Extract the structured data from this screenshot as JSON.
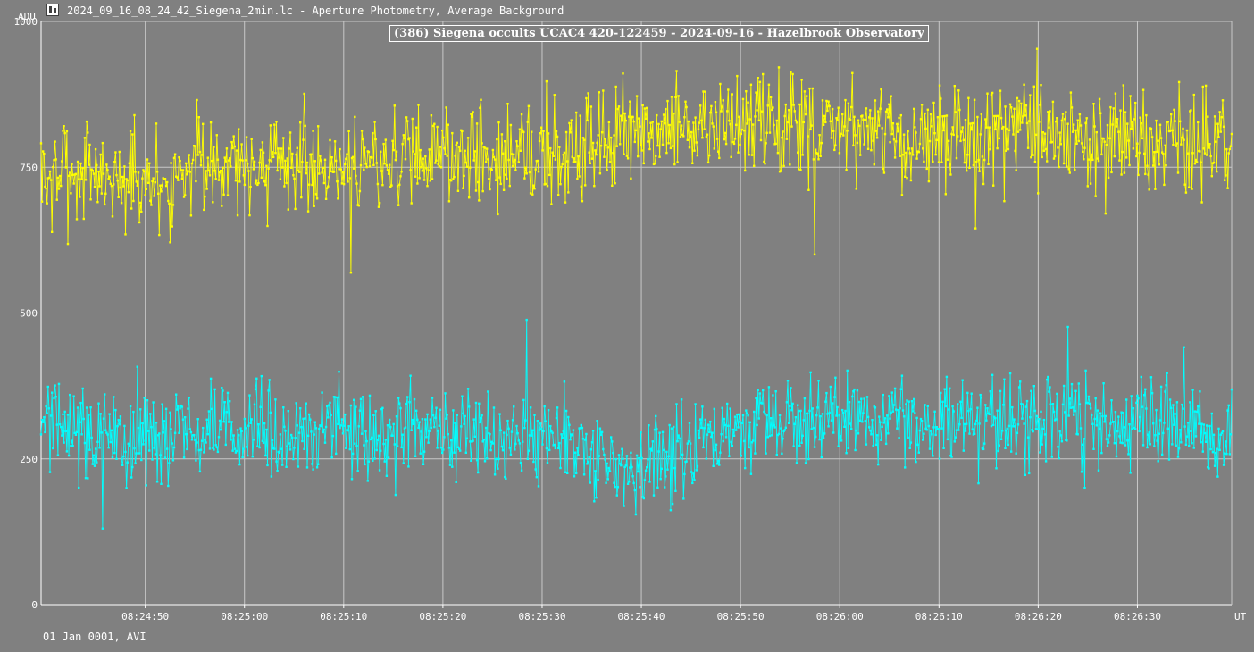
{
  "window": {
    "title": "2024_09_16_08_24_42_Siegena_2min.lc - Aperture Photometry, Average Background",
    "icon": "tangra-app-icon"
  },
  "footer": {
    "date_label": "01 Jan 0001, AVI"
  },
  "chart_data": {
    "type": "line",
    "title": "(386) Siegena occults UCAC4 420-122459 - 2024-09-16 - Hazelbrook Observatory",
    "ylabel": "ADU",
    "xlabel": "UT",
    "ylim": [
      0,
      1000
    ],
    "yticks": [
      0,
      250,
      500,
      750,
      1000
    ],
    "xlim_seconds": [
      39.5,
      159.5
    ],
    "xticks": [
      {
        "s": 50,
        "label": "08:24:50"
      },
      {
        "s": 60,
        "label": "08:25:00"
      },
      {
        "s": 70,
        "label": "08:25:10"
      },
      {
        "s": 80,
        "label": "08:25:20"
      },
      {
        "s": 90,
        "label": "08:25:30"
      },
      {
        "s": 100,
        "label": "08:25:40"
      },
      {
        "s": 110,
        "label": "08:25:50"
      },
      {
        "s": 120,
        "label": "08:26:00"
      },
      {
        "s": 130,
        "label": "08:26:10"
      },
      {
        "s": 140,
        "label": "08:26:20"
      },
      {
        "s": 150,
        "label": "08:26:30"
      }
    ],
    "grid": true,
    "series": [
      {
        "color": "#ffff00",
        "trend": [
          [
            39.5,
            740
          ],
          [
            45,
            740
          ],
          [
            52,
            720
          ],
          [
            55,
            760
          ],
          [
            60,
            760
          ],
          [
            70,
            755
          ],
          [
            80,
            775
          ],
          [
            90,
            770
          ],
          [
            100,
            805
          ],
          [
            110,
            820
          ],
          [
            120,
            810
          ],
          [
            130,
            790
          ],
          [
            140,
            810
          ],
          [
            150,
            790
          ],
          [
            159.5,
            780
          ]
        ],
        "noise": 85,
        "seed": 7
      },
      {
        "color": "#00ffff",
        "trend": [
          [
            39.5,
            320
          ],
          [
            45,
            290
          ],
          [
            50,
            285
          ],
          [
            60,
            300
          ],
          [
            70,
            290
          ],
          [
            80,
            300
          ],
          [
            90,
            285
          ],
          [
            100,
            240
          ],
          [
            105,
            270
          ],
          [
            110,
            300
          ],
          [
            120,
            330
          ],
          [
            130,
            300
          ],
          [
            140,
            320
          ],
          [
            150,
            315
          ],
          [
            159.5,
            290
          ]
        ],
        "noise": 75,
        "seed": 13
      }
    ]
  }
}
